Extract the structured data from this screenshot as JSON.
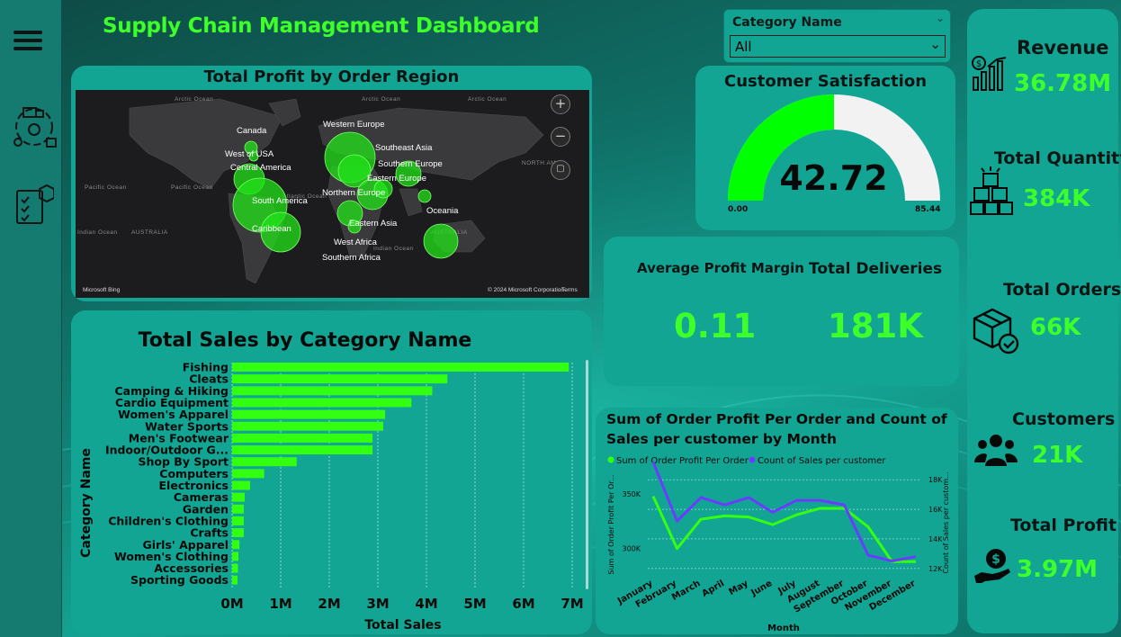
{
  "header": {
    "title": "Supply Chain Management Dashboard"
  },
  "slicer": {
    "label": "Category Name",
    "value": "All"
  },
  "map": {
    "title": "Total Profit by Order Region",
    "regions": [
      {
        "name": "Canada"
      },
      {
        "name": "West of USA"
      },
      {
        "name": "Central America"
      },
      {
        "name": "South America"
      },
      {
        "name": "Caribbean"
      },
      {
        "name": "Western Europe"
      },
      {
        "name": "Southeast Asia"
      },
      {
        "name": "Southern Europe"
      },
      {
        "name": "Eastern Europe"
      },
      {
        "name": "Northern Europe"
      },
      {
        "name": "Oceania"
      },
      {
        "name": "Eastern Asia"
      },
      {
        "name": "West Africa"
      },
      {
        "name": "Southern Africa"
      }
    ],
    "oceans": [
      "Arctic Ocean",
      "Arctic Ocean",
      "Arctic Ocean",
      "Pacific Ocean",
      "Pacific Ocean",
      "Atlantic Ocean",
      "Indian Ocean",
      "AUSTRALIA",
      "Indian Ocean",
      "AUSTRALIA",
      "NORTH AM"
    ],
    "attribution_left": "Microsoft Bing",
    "attribution_right": "© 2024 Microsoft Corporation",
    "terms": "Terms",
    "zoom_in": "+",
    "zoom_out": "−"
  },
  "gauge": {
    "title": "Customer Satisfaction",
    "value_label": "42.72",
    "min_label": "0.00",
    "max_label": "85.44",
    "value": 42.72,
    "min": 0,
    "max": 85.44,
    "fill_color": "#00ff00",
    "track_color": "#f2f2f2"
  },
  "metrics": {
    "avg_profit_margin_label": "Average Profit Margin",
    "avg_profit_margin_value": "0.11",
    "total_deliveries_label": "Total Deliveries",
    "total_deliveries_value": "181K"
  },
  "kpis": [
    {
      "label": "Revenue",
      "value": "36.78M",
      "icon": "revenue-chart-icon"
    },
    {
      "label": "Total Quantity",
      "value": "384K",
      "icon": "boxes-icon"
    },
    {
      "label": "Total Orders",
      "value": "66K",
      "icon": "package-check-icon"
    },
    {
      "label": "Customers",
      "value": "21K",
      "icon": "users-icon"
    },
    {
      "label": "Total Profit",
      "value": "3.97M",
      "icon": "hand-money-icon"
    }
  ],
  "colors": {
    "accent": "#3dff2a",
    "bar": "#33ff11",
    "line_profit": "#33ff11",
    "line_sales": "#6a3cff",
    "card": "#13a594"
  },
  "chart_data": [
    {
      "type": "bar",
      "title": "Total Sales by Category Name",
      "xlabel": "Total Sales",
      "ylabel": "Category Name",
      "orientation": "horizontal",
      "categories": [
        "Fishing",
        "Cleats",
        "Camping & Hiking",
        "Cardio Equipment",
        "Women's Apparel",
        "Water Sports",
        "Men's Footwear",
        "Indoor/Outdoor G...",
        "Shop By Sport",
        "Computers",
        "Electronics",
        "Cameras",
        "Garden",
        "Children's Clothing",
        "Crafts",
        "Girls' Apparel",
        "Women's Clothing",
        "Accessories",
        "Sporting Goods"
      ],
      "values": [
        6.93,
        4.43,
        4.12,
        3.69,
        3.15,
        3.11,
        2.89,
        2.89,
        1.33,
        0.66,
        0.37,
        0.26,
        0.24,
        0.24,
        0.24,
        0.15,
        0.13,
        0.12,
        0.11
      ],
      "unit": "M",
      "xlim": [
        0,
        7
      ],
      "xticks": [
        "0M",
        "1M",
        "2M",
        "3M",
        "4M",
        "5M",
        "6M",
        "7M"
      ]
    },
    {
      "type": "line",
      "title": "Sum of Order Profit Per Order and Count of Sales per customer by Month",
      "xlabel": "Month",
      "ylabel": "Sum of Order Profit Per Or...",
      "ylabel2": "Count of Sales per custom...",
      "categories": [
        "January",
        "February",
        "March",
        "April",
        "May",
        "June",
        "July",
        "August",
        "September",
        "October",
        "November",
        "December"
      ],
      "series": [
        {
          "name": "Sum of Order Profit Per Order",
          "axis": "left",
          "values": [
            348,
            300,
            327,
            330,
            329,
            322,
            331,
            337,
            337,
            320,
            288,
            288
          ]
        },
        {
          "name": "Count of Sales per customer",
          "axis": "right",
          "values": [
            19.2,
            15.2,
            16.8,
            16.3,
            16.8,
            15.8,
            16.6,
            16.6,
            16.3,
            12.9,
            12.5,
            12.8
          ]
        }
      ],
      "yticks_left": [
        "300K",
        "350K"
      ],
      "yticks_right": [
        "12K",
        "14K",
        "16K",
        "18K"
      ],
      "ylim_left": [
        275,
        370
      ],
      "ylim_right": [
        11.5,
        18.5
      ]
    }
  ]
}
